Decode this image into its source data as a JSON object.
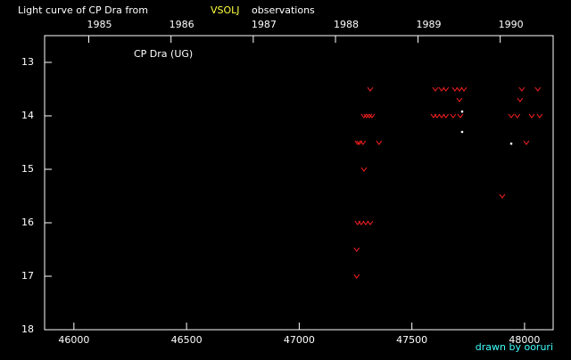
{
  "chart_data": {
    "type": "scatter",
    "title_prefix": "Light curve of CP Dra from",
    "title_source": "VSOLJ",
    "title_suffix": "observations",
    "star_label": "CP Dra (UG)",
    "credit": "drawn by ooruri",
    "xlim": [
      45870,
      48127
    ],
    "ylim": [
      18,
      12.5
    ],
    "xticks": [
      46000,
      46500,
      47000,
      47500,
      48000
    ],
    "yticks": [
      13,
      14,
      15,
      16,
      17,
      18
    ],
    "x2ticks": [
      {
        "value": 46066,
        "label": "1985"
      },
      {
        "value": 46431,
        "label": "1986"
      },
      {
        "value": 46796,
        "label": "1987"
      },
      {
        "value": 47161,
        "label": "1988"
      },
      {
        "value": 47527,
        "label": "1989"
      },
      {
        "value": 47892,
        "label": "1990"
      }
    ],
    "series": [
      {
        "marker": "v",
        "color": "#ff2020",
        "x": [
          47255,
          47255,
          47259,
          47275,
          47295,
          47315,
          47259,
          47267,
          47283,
          47354,
          47287,
          47287,
          47299,
          47311,
          47323,
          47315,
          47604,
          47632,
          47651,
          47691,
          47711,
          47731,
          47596,
          47612,
          47632,
          47651,
          47683,
          47715,
          47711,
          47901,
          47941,
          47968,
          47980,
          47988,
          48008,
          48032,
          48067,
          48059
        ],
        "values": [
          17.0,
          16.5,
          16.0,
          16.0,
          16.0,
          16.0,
          14.5,
          14.5,
          14.5,
          14.5,
          15.0,
          14.0,
          14.0,
          14.0,
          14.0,
          13.5,
          13.5,
          13.5,
          13.5,
          13.5,
          13.5,
          13.5,
          14.0,
          14.0,
          14.0,
          14.0,
          14.0,
          14.0,
          13.7,
          15.5,
          14.0,
          14.0,
          13.7,
          13.5,
          14.5,
          14.0,
          14.0,
          13.5
        ]
      },
      {
        "marker": "dot",
        "color": "#ffffff",
        "x": [
          47723,
          47723,
          47941
        ],
        "values": [
          13.92,
          14.3,
          14.52
        ]
      }
    ]
  }
}
